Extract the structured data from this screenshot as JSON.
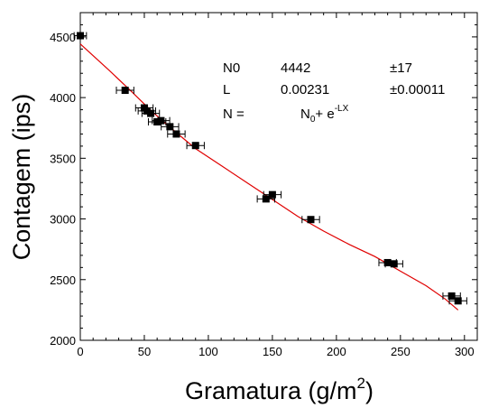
{
  "chart_data": {
    "type": "scatter",
    "xlabel": "Gramatura (g/m",
    "xlabel_sup": "2",
    "xlabel_close": ")",
    "ylabel": "Contagem (ips)",
    "xlim": [
      0,
      310
    ],
    "ylim": [
      2000,
      4700
    ],
    "xticks": [
      0,
      50,
      100,
      150,
      200,
      250,
      300
    ],
    "yticks": [
      2000,
      2500,
      3000,
      3500,
      4000,
      4500
    ],
    "grid": false,
    "marker_color": "#000000",
    "fit_color": "#e00000",
    "points": [
      {
        "x": 0,
        "y": 4510,
        "xerr": 2
      },
      {
        "x": 35,
        "y": 4060,
        "xerr": 4
      },
      {
        "x": 50,
        "y": 3915,
        "xerr": 4
      },
      {
        "x": 52,
        "y": 3890,
        "xerr": 4
      },
      {
        "x": 55,
        "y": 3870,
        "xerr": 4
      },
      {
        "x": 60,
        "y": 3800,
        "xerr": 4
      },
      {
        "x": 63,
        "y": 3810,
        "xerr": 4
      },
      {
        "x": 70,
        "y": 3760,
        "xerr": 4
      },
      {
        "x": 75,
        "y": 3700,
        "xerr": 4
      },
      {
        "x": 90,
        "y": 3605,
        "xerr": 4
      },
      {
        "x": 145,
        "y": 3165,
        "xerr": 4
      },
      {
        "x": 150,
        "y": 3200,
        "xerr": 4
      },
      {
        "x": 180,
        "y": 2995,
        "xerr": 4
      },
      {
        "x": 240,
        "y": 2640,
        "xerr": 4
      },
      {
        "x": 245,
        "y": 2630,
        "xerr": 4
      },
      {
        "x": 290,
        "y": 2365,
        "xerr": 4
      },
      {
        "x": 295,
        "y": 2325,
        "xerr": 4
      }
    ],
    "fit": {
      "type": "exponential",
      "N0": 4442,
      "L": 0.00231,
      "x_range": [
        0,
        295
      ],
      "wiggle": [
        {
          "x": 0,
          "y": 4442
        },
        {
          "x": 22,
          "y": 4230
        },
        {
          "x": 40,
          "y": 4050
        },
        {
          "x": 55,
          "y": 3895
        },
        {
          "x": 70,
          "y": 3755
        },
        {
          "x": 90,
          "y": 3580
        },
        {
          "x": 110,
          "y": 3440
        },
        {
          "x": 130,
          "y": 3300
        },
        {
          "x": 150,
          "y": 3160
        },
        {
          "x": 170,
          "y": 3020
        },
        {
          "x": 190,
          "y": 2900
        },
        {
          "x": 210,
          "y": 2790
        },
        {
          "x": 230,
          "y": 2690
        },
        {
          "x": 250,
          "y": 2570
        },
        {
          "x": 270,
          "y": 2450
        },
        {
          "x": 285,
          "y": 2340
        },
        {
          "x": 295,
          "y": 2250
        }
      ]
    },
    "annotation": {
      "row1": {
        "name": "N0",
        "value": "4442",
        "error": "±17"
      },
      "row2": {
        "name": "L",
        "value": "0.00231",
        "error": "±0.00011"
      },
      "row3": {
        "label": "N =",
        "formula_n": "N",
        "formula_sub": "0",
        "formula_mid": "+ e",
        "formula_sup": "-LX"
      }
    }
  }
}
